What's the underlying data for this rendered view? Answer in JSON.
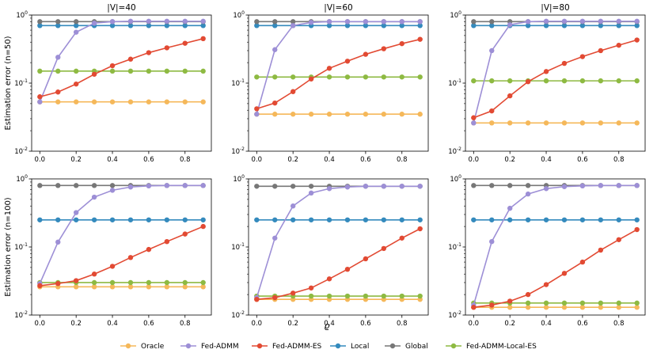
{
  "figure": {
    "xlabel": "ϱ",
    "row_ylabels": [
      "Estimation error (n=50)",
      "Estimation error (n=100)"
    ],
    "col_titles": [
      "|V|=40",
      "|V|=60",
      "|V|=80"
    ]
  },
  "series_styles": [
    {
      "name": "Oracle",
      "color": "#f5b85a"
    },
    {
      "name": "Fed-ADMM",
      "color": "#9d8fd6"
    },
    {
      "name": "Fed-ADMM-ES",
      "color": "#e24a33"
    },
    {
      "name": "Local",
      "color": "#348abd"
    },
    {
      "name": "Global",
      "color": "#777777"
    },
    {
      "name": "Fed-ADMM-Local-ES",
      "color": "#8eba42"
    }
  ],
  "chart_data": [
    {
      "type": "line",
      "title": "|V|=40",
      "xlabel": "",
      "ylabel": "Estimation error (n=50)",
      "yscale": "log",
      "ylim": [
        0.01,
        1
      ],
      "xlim": [
        -0.045,
        0.945
      ],
      "x": [
        0,
        0.1,
        0.2,
        0.3,
        0.4,
        0.5,
        0.6,
        0.7,
        0.8,
        0.9
      ],
      "x_ticks": [
        "0.0",
        "0.2",
        "0.4",
        "0.6",
        "0.8"
      ],
      "series": [
        {
          "name": "Oracle",
          "values": [
            0.053,
            0.053,
            0.053,
            0.053,
            0.053,
            0.053,
            0.053,
            0.053,
            0.053,
            0.053
          ]
        },
        {
          "name": "Fed-ADMM",
          "values": [
            0.053,
            0.24,
            0.56,
            0.76,
            0.8,
            0.81,
            0.81,
            0.81,
            0.81,
            0.81
          ]
        },
        {
          "name": "Fed-ADMM-ES",
          "values": [
            0.063,
            0.074,
            0.097,
            0.135,
            0.18,
            0.225,
            0.28,
            0.33,
            0.385,
            0.45
          ]
        },
        {
          "name": "Local",
          "values": [
            0.7,
            0.7,
            0.7,
            0.7,
            0.7,
            0.7,
            0.7,
            0.7,
            0.7,
            0.7
          ]
        },
        {
          "name": "Global",
          "values": [
            0.8,
            0.8,
            0.8,
            0.8,
            0.8,
            0.8,
            0.8,
            0.8,
            0.8,
            0.8
          ]
        },
        {
          "name": "Fed-ADMM-Local-ES",
          "values": [
            0.15,
            0.15,
            0.15,
            0.15,
            0.15,
            0.15,
            0.15,
            0.15,
            0.15,
            0.15
          ]
        }
      ]
    },
    {
      "type": "line",
      "title": "|V|=60",
      "xlabel": "",
      "ylabel": "",
      "yscale": "log",
      "ylim": [
        0.01,
        1
      ],
      "xlim": [
        -0.045,
        0.945
      ],
      "x": [
        0,
        0.1,
        0.2,
        0.3,
        0.4,
        0.5,
        0.6,
        0.7,
        0.8,
        0.9
      ],
      "x_ticks": [
        "0.0",
        "0.2",
        "0.4",
        "0.6",
        "0.8"
      ],
      "series": [
        {
          "name": "Oracle",
          "values": [
            0.035,
            0.035,
            0.035,
            0.035,
            0.035,
            0.035,
            0.035,
            0.035,
            0.035,
            0.035
          ]
        },
        {
          "name": "Fed-ADMM",
          "values": [
            0.035,
            0.31,
            0.7,
            0.78,
            0.8,
            0.8,
            0.8,
            0.8,
            0.8,
            0.8
          ]
        },
        {
          "name": "Fed-ADMM-ES",
          "values": [
            0.042,
            0.051,
            0.075,
            0.115,
            0.165,
            0.21,
            0.265,
            0.32,
            0.38,
            0.44
          ]
        },
        {
          "name": "Local",
          "values": [
            0.7,
            0.7,
            0.7,
            0.7,
            0.7,
            0.7,
            0.7,
            0.7,
            0.7,
            0.7
          ]
        },
        {
          "name": "Global",
          "values": [
            0.8,
            0.8,
            0.8,
            0.8,
            0.8,
            0.8,
            0.8,
            0.8,
            0.8,
            0.8
          ]
        },
        {
          "name": "Fed-ADMM-Local-ES",
          "values": [
            0.123,
            0.123,
            0.123,
            0.123,
            0.123,
            0.123,
            0.123,
            0.123,
            0.123,
            0.123
          ]
        }
      ]
    },
    {
      "type": "line",
      "title": "|V|=80",
      "xlabel": "",
      "ylabel": "",
      "yscale": "log",
      "ylim": [
        0.01,
        1
      ],
      "xlim": [
        -0.045,
        0.945
      ],
      "x": [
        0,
        0.1,
        0.2,
        0.3,
        0.4,
        0.5,
        0.6,
        0.7,
        0.8,
        0.9
      ],
      "x_ticks": [
        "0.0",
        "0.2",
        "0.4",
        "0.6",
        "0.8"
      ],
      "series": [
        {
          "name": "Oracle",
          "values": [
            0.026,
            0.026,
            0.026,
            0.026,
            0.026,
            0.026,
            0.026,
            0.026,
            0.026,
            0.026
          ]
        },
        {
          "name": "Fed-ADMM",
          "values": [
            0.026,
            0.3,
            0.72,
            0.8,
            0.81,
            0.81,
            0.81,
            0.81,
            0.81,
            0.81
          ]
        },
        {
          "name": "Fed-ADMM-ES",
          "values": [
            0.031,
            0.039,
            0.065,
            0.105,
            0.148,
            0.195,
            0.245,
            0.3,
            0.36,
            0.43
          ]
        },
        {
          "name": "Local",
          "values": [
            0.7,
            0.7,
            0.7,
            0.7,
            0.7,
            0.7,
            0.7,
            0.7,
            0.7,
            0.7
          ]
        },
        {
          "name": "Global",
          "values": [
            0.8,
            0.8,
            0.8,
            0.8,
            0.8,
            0.8,
            0.8,
            0.8,
            0.8,
            0.8
          ]
        },
        {
          "name": "Fed-ADMM-Local-ES",
          "values": [
            0.108,
            0.108,
            0.108,
            0.108,
            0.108,
            0.108,
            0.108,
            0.108,
            0.108,
            0.108
          ]
        }
      ]
    },
    {
      "type": "line",
      "title": "",
      "xlabel": "",
      "ylabel": "Estimation error (n=100)",
      "yscale": "log",
      "ylim": [
        0.01,
        1
      ],
      "xlim": [
        -0.045,
        0.945
      ],
      "x": [
        0,
        0.1,
        0.2,
        0.3,
        0.4,
        0.5,
        0.6,
        0.7,
        0.8,
        0.9
      ],
      "x_ticks": [
        "0.0",
        "0.2",
        "0.4",
        "0.6",
        "0.8"
      ],
      "series": [
        {
          "name": "Oracle",
          "values": [
            0.026,
            0.026,
            0.026,
            0.026,
            0.026,
            0.026,
            0.026,
            0.026,
            0.026,
            0.026
          ]
        },
        {
          "name": "Fed-ADMM",
          "values": [
            0.029,
            0.118,
            0.32,
            0.54,
            0.68,
            0.76,
            0.79,
            0.8,
            0.8,
            0.8
          ]
        },
        {
          "name": "Fed-ADMM-ES",
          "values": [
            0.027,
            0.029,
            0.032,
            0.04,
            0.052,
            0.07,
            0.092,
            0.12,
            0.155,
            0.2
          ]
        },
        {
          "name": "Local",
          "values": [
            0.25,
            0.25,
            0.25,
            0.25,
            0.25,
            0.25,
            0.25,
            0.25,
            0.25,
            0.25
          ]
        },
        {
          "name": "Global",
          "values": [
            0.8,
            0.8,
            0.8,
            0.8,
            0.8,
            0.8,
            0.8,
            0.8,
            0.8,
            0.8
          ]
        },
        {
          "name": "Fed-ADMM-Local-ES",
          "values": [
            0.03,
            0.03,
            0.03,
            0.03,
            0.03,
            0.03,
            0.03,
            0.03,
            0.03,
            0.03
          ]
        }
      ]
    },
    {
      "type": "line",
      "title": "",
      "xlabel": "ϱ",
      "ylabel": "",
      "yscale": "log",
      "ylim": [
        0.01,
        1
      ],
      "xlim": [
        -0.045,
        0.945
      ],
      "x": [
        0,
        0.1,
        0.2,
        0.3,
        0.4,
        0.5,
        0.6,
        0.7,
        0.8,
        0.9
      ],
      "x_ticks": [
        "0.0",
        "0.2",
        "0.4",
        "0.6",
        "0.8"
      ],
      "series": [
        {
          "name": "Oracle",
          "values": [
            0.017,
            0.017,
            0.017,
            0.017,
            0.017,
            0.017,
            0.017,
            0.017,
            0.017,
            0.017
          ]
        },
        {
          "name": "Fed-ADMM",
          "values": [
            0.018,
            0.135,
            0.4,
            0.62,
            0.72,
            0.76,
            0.78,
            0.78,
            0.78,
            0.78
          ]
        },
        {
          "name": "Fed-ADMM-ES",
          "values": [
            0.017,
            0.018,
            0.021,
            0.025,
            0.034,
            0.047,
            0.067,
            0.095,
            0.135,
            0.185
          ]
        },
        {
          "name": "Local",
          "values": [
            0.25,
            0.25,
            0.25,
            0.25,
            0.25,
            0.25,
            0.25,
            0.25,
            0.25,
            0.25
          ]
        },
        {
          "name": "Global",
          "values": [
            0.78,
            0.78,
            0.78,
            0.78,
            0.78,
            0.78,
            0.78,
            0.78,
            0.78,
            0.78
          ]
        },
        {
          "name": "Fed-ADMM-Local-ES",
          "values": [
            0.019,
            0.019,
            0.019,
            0.019,
            0.019,
            0.019,
            0.019,
            0.019,
            0.019,
            0.019
          ]
        }
      ]
    },
    {
      "type": "line",
      "title": "",
      "xlabel": "",
      "ylabel": "",
      "yscale": "log",
      "ylim": [
        0.01,
        1
      ],
      "xlim": [
        -0.045,
        0.945
      ],
      "x": [
        0,
        0.1,
        0.2,
        0.3,
        0.4,
        0.5,
        0.6,
        0.7,
        0.8,
        0.9
      ],
      "x_ticks": [
        "0.0",
        "0.2",
        "0.4",
        "0.6",
        "0.8"
      ],
      "series": [
        {
          "name": "Oracle",
          "values": [
            0.013,
            0.013,
            0.013,
            0.013,
            0.013,
            0.013,
            0.013,
            0.013,
            0.013,
            0.013
          ]
        },
        {
          "name": "Fed-ADMM",
          "values": [
            0.014,
            0.12,
            0.37,
            0.6,
            0.72,
            0.77,
            0.79,
            0.8,
            0.8,
            0.8
          ]
        },
        {
          "name": "Fed-ADMM-ES",
          "values": [
            0.013,
            0.014,
            0.016,
            0.02,
            0.028,
            0.041,
            0.06,
            0.09,
            0.128,
            0.18
          ]
        },
        {
          "name": "Local",
          "values": [
            0.25,
            0.25,
            0.25,
            0.25,
            0.25,
            0.25,
            0.25,
            0.25,
            0.25,
            0.25
          ]
        },
        {
          "name": "Global",
          "values": [
            0.8,
            0.8,
            0.8,
            0.8,
            0.8,
            0.8,
            0.8,
            0.8,
            0.8,
            0.8
          ]
        },
        {
          "name": "Fed-ADMM-Local-ES",
          "values": [
            0.015,
            0.015,
            0.015,
            0.015,
            0.015,
            0.015,
            0.015,
            0.015,
            0.015,
            0.015
          ]
        }
      ]
    }
  ]
}
